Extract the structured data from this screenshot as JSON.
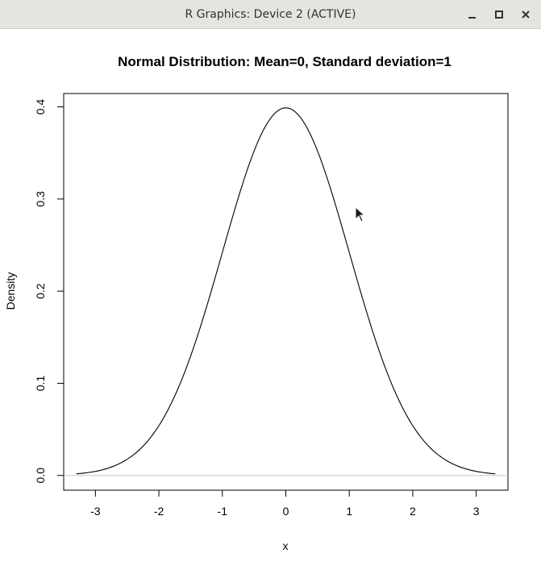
{
  "window": {
    "title": "R Graphics: Device 2 (ACTIVE)",
    "icons": [
      "minimize-icon",
      "maximize-icon",
      "close-icon"
    ]
  },
  "chart_data": {
    "type": "line",
    "title": "Normal Distribution:  Mean=0, Standard deviation=1",
    "xlabel": "x",
    "ylabel": "Density",
    "mean": 0,
    "sd": 1,
    "xlim": [
      -3.5,
      3.5
    ],
    "ylim": [
      -0.016,
      0.4145
    ],
    "x_range": [
      -3.3,
      3.3
    ],
    "x_ticks": [
      -3,
      -2,
      -1,
      0,
      1,
      2,
      3
    ],
    "x_tick_labels": [
      "-3",
      "-2",
      "-1",
      "0",
      "1",
      "2",
      "3"
    ],
    "y_ticks": [
      0.0,
      0.1,
      0.2,
      0.3,
      0.4
    ],
    "y_tick_labels": [
      "0.0",
      "0.1",
      "0.2",
      "0.3",
      "0.4"
    ],
    "hline": 0,
    "line_color": "#000000",
    "hline_color": "#c8c8c8",
    "grid": false,
    "legend": "none"
  }
}
